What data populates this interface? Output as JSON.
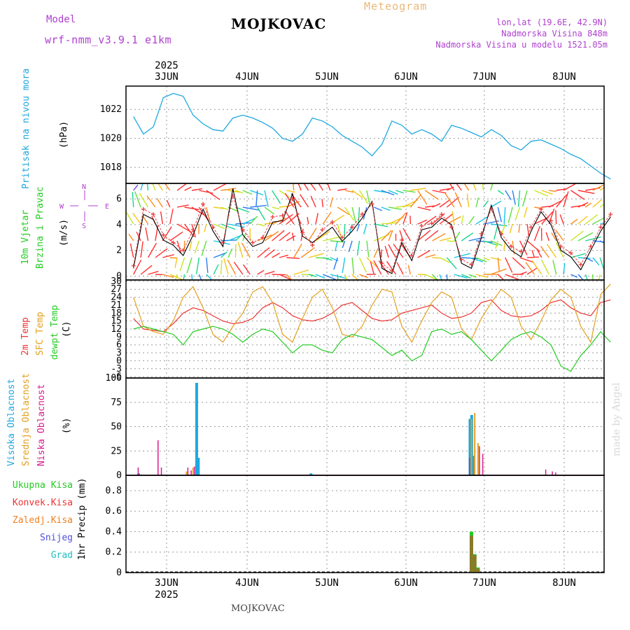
{
  "header": {
    "model_label": "Model",
    "model_name": "wrf-nmm_v3.9.1 e1km",
    "station": "MOJKOVAC",
    "product": "Meteogram",
    "lonlat": "lon,lat (19.6E, 42.9N)",
    "elevation": "Nadmorska Visina 848m",
    "model_elevation": "Nadmorska Visina u modelu 1521.05m"
  },
  "footer": {
    "station": "MOJKOVAC",
    "credit": "made by Angel"
  },
  "colors": {
    "pressure": "#1fa8e0",
    "temp2m": "#ee3333",
    "sfc": "#e3a020",
    "dewpt": "#22cc22",
    "high_cloud": "#1fa8e0",
    "mid_cloud": "#e3a020",
    "low_cloud": "#d81b8c",
    "precip_total": "#22cc22",
    "precip_conv": "#ee3333",
    "precip_frz": "#f08020",
    "snow": "#5050e0",
    "hail": "#20c0c0",
    "purple_text": "#b040d0"
  },
  "axis": {
    "year": "2025",
    "days": [
      "3JUN",
      "4JUN",
      "5JUN",
      "6JUN",
      "7JUN",
      "8JUN"
    ]
  },
  "panels": {
    "pressure": {
      "label1": "Pritisak na nivou mora",
      "unit": "(hPa)",
      "ticks": [
        "1018",
        "1020",
        "1022"
      ]
    },
    "wind": {
      "label1": "10m Vjetar",
      "label2": "Brzina i Pravac",
      "unit": "(m/s)",
      "ticks": [
        "0",
        "2",
        "4",
        "6"
      ],
      "compass": {
        "w": "W",
        "e": "E",
        "n": "N",
        "s": "S"
      }
    },
    "temp": {
      "label1": "2m Temp",
      "label2": "SFC Temp",
      "label3": "dewpt Temp",
      "unit": "(C)",
      "ticks": [
        "-6",
        "-3",
        "0",
        "3",
        "6",
        "9",
        "12",
        "15",
        "18",
        "21",
        "24",
        "27",
        "30"
      ]
    },
    "cloud": {
      "label1": "Visoka Oblacnost",
      "label2": "Srednja Oblacnost",
      "label3": "Niska Oblacnost",
      "unit": "(%)",
      "ticks": [
        "0",
        "25",
        "50",
        "75",
        "100"
      ]
    },
    "precip": {
      "legend": [
        "Ukupna Kisa",
        "Konvek.Kisa",
        "Zaledj.Kisa",
        "Snijeg",
        "Grad"
      ],
      "label": "1hr Precip (mm)",
      "ticks": [
        "0",
        "0.2",
        "0.4",
        "0.6",
        "0.8"
      ]
    }
  },
  "chart_data": [
    {
      "type": "line",
      "title": "Pritisak na nivou mora",
      "ylabel": "(hPa)",
      "ylim": [
        1016.9,
        1023.6
      ],
      "x_hours": [
        0,
        3,
        6,
        9,
        12,
        15,
        18,
        21,
        24,
        27,
        30,
        33,
        36,
        39,
        42,
        45,
        48,
        51,
        54,
        57,
        60,
        63,
        66,
        69,
        72,
        75,
        78,
        81,
        84,
        87,
        90,
        93,
        96,
        99,
        102,
        105,
        108,
        111,
        114,
        117,
        120,
        123,
        126,
        129,
        132,
        135,
        138,
        141,
        144
      ],
      "series": [
        {
          "values": [
            1021.5,
            1020.3,
            1020.8,
            1022.8,
            1023.1,
            1022.9,
            1021.6,
            1021.0,
            1020.6,
            1020.5,
            1021.4,
            1021.6,
            1021.4,
            1021.1,
            1020.7,
            1020.0,
            1019.8,
            1020.3,
            1021.4,
            1021.2,
            1020.8,
            1020.2,
            1019.8,
            1019.4,
            1018.8,
            1019.6,
            1021.2,
            1020.9,
            1020.3,
            1020.6,
            1020.3,
            1019.8,
            1020.9,
            1020.7,
            1020.4,
            1020.1,
            1020.6,
            1020.2,
            1019.5,
            1019.2,
            1019.8,
            1019.9,
            1019.6,
            1019.3,
            1018.9,
            1018.6,
            1018.1,
            1017.6,
            1017.2
          ]
        }
      ],
      "grid": true
    },
    {
      "type": "line",
      "title": "10m Vjetar Brzina i Pravac",
      "ylabel": "(m/s)",
      "ylim": [
        -0.3,
        7.2
      ],
      "x_hours": [
        0,
        3,
        6,
        9,
        12,
        15,
        18,
        21,
        24,
        27,
        30,
        33,
        36,
        39,
        42,
        45,
        48,
        51,
        54,
        57,
        60,
        63,
        66,
        69,
        72,
        75,
        78,
        81,
        84,
        87,
        90,
        93,
        96,
        99,
        102,
        105,
        108,
        111,
        114,
        117,
        120,
        123,
        126,
        129,
        132,
        135,
        138,
        141,
        144
      ],
      "series": [
        {
          "name": "speed",
          "values": [
            0.6,
            4.8,
            4.4,
            2.8,
            2.4,
            1.6,
            3.2,
            5.2,
            3.5,
            2.3,
            6.8,
            3.2,
            2.3,
            2.6,
            4.2,
            4.3,
            6.4,
            3.1,
            2.6,
            3.2,
            3.8,
            2.7,
            3.5,
            4.5,
            5.8,
            0.6,
            0.2,
            2.6,
            1.2,
            3.6,
            3.8,
            4.5,
            4.0,
            1.0,
            0.6,
            3.0,
            5.5,
            3.0,
            2.0,
            1.5,
            3.5,
            5.0,
            4.0,
            2.0,
            1.5,
            0.5,
            2.0,
            3.5,
            4.6
          ]
        },
        {
          "name": "gust",
          "values": [
            0.8,
            5.2,
            4.8,
            3.2,
            2.6,
            2.0,
            3.6,
            5.6,
            3.8,
            2.6,
            6.2,
            3.6,
            2.6,
            3.0,
            4.6,
            4.7,
            6.0,
            3.4,
            2.4,
            3.6,
            4.2,
            3.0,
            3.8,
            4.8,
            5.6,
            1.0,
            0.4,
            2.8,
            1.6,
            3.9,
            4.1,
            4.8,
            3.8,
            1.3,
            0.9,
            3.3,
            5.2,
            3.3,
            2.3,
            1.9,
            3.8,
            5.2,
            4.3,
            2.3,
            1.8,
            0.9,
            2.3,
            3.8,
            4.8
          ]
        }
      ],
      "grid": true
    },
    {
      "type": "line",
      "title": "2m Temp / SFC Temp / dewpt Temp",
      "ylabel": "(C)",
      "ylim": [
        -6.5,
        30.5
      ],
      "x_hours": [
        0,
        3,
        6,
        9,
        12,
        15,
        18,
        21,
        24,
        27,
        30,
        33,
        36,
        39,
        42,
        45,
        48,
        51,
        54,
        57,
        60,
        63,
        66,
        69,
        72,
        75,
        78,
        81,
        84,
        87,
        90,
        93,
        96,
        99,
        102,
        105,
        108,
        111,
        114,
        117,
        120,
        123,
        126,
        129,
        132,
        135,
        138,
        141,
        144
      ],
      "series": [
        {
          "name": "2m Temp",
          "values": [
            16,
            12,
            11.5,
            11,
            14,
            18,
            20,
            19,
            17,
            15,
            14,
            14.5,
            16,
            20,
            22,
            20,
            17,
            15.5,
            15,
            16,
            18,
            21,
            22,
            19,
            16,
            15,
            15.5,
            18,
            19,
            20,
            21,
            18,
            16,
            16.5,
            18,
            22,
            23,
            19,
            17,
            16.5,
            17,
            19,
            22,
            23,
            20,
            18,
            17,
            22,
            23
          ]
        },
        {
          "name": "SFC Temp",
          "values": [
            24,
            13,
            11,
            10,
            15,
            24,
            28,
            20,
            10,
            7,
            13,
            18,
            26,
            28,
            22,
            10,
            7,
            16,
            24,
            27,
            20,
            10,
            9,
            13,
            21,
            27,
            26,
            13,
            7,
            15,
            22,
            26,
            24,
            12,
            8,
            16,
            22,
            27,
            24,
            13,
            8,
            15,
            23,
            27,
            24,
            13,
            7,
            25,
            29
          ]
        },
        {
          "name": "dewpt Temp",
          "values": [
            12,
            13,
            12,
            11,
            10,
            6,
            11,
            12,
            13,
            12,
            10,
            7,
            10,
            12,
            11,
            7,
            3,
            6,
            6,
            4,
            3,
            8,
            10,
            9,
            8,
            5,
            2,
            4,
            0,
            2,
            11,
            12,
            10,
            11,
            8,
            4,
            0,
            4,
            8,
            10,
            11,
            9,
            6,
            -2,
            -4,
            2,
            6,
            11,
            7
          ]
        }
      ],
      "grid": true
    },
    {
      "type": "bar",
      "title": "Oblacnost",
      "ylabel": "(%)",
      "ylim": [
        0,
        100
      ],
      "series": [
        {
          "name": "Visoka Oblacnost",
          "x_hours": [
            2,
            19,
            19.5,
            20,
            54,
            102,
            102.5,
            103
          ],
          "values": [
            2,
            1,
            95,
            18,
            2,
            58,
            62,
            20
          ]
        },
        {
          "name": "Srednja Oblacnost",
          "x_hours": [
            16,
            18,
            102,
            103,
            104
          ],
          "values": [
            4,
            8,
            58,
            64,
            33
          ]
        },
        {
          "name": "Niska Oblacnost",
          "x_hours": [
            1,
            7,
            8,
            16,
            17,
            18,
            101,
            104,
            105,
            124,
            126,
            127
          ],
          "values": [
            8,
            36,
            8,
            8,
            5,
            9,
            18,
            30,
            22,
            6,
            4,
            3
          ]
        }
      ],
      "grid": true
    },
    {
      "type": "bar",
      "title": "1hr Precip",
      "ylabel": "1hr Precip (mm)",
      "ylim": [
        0,
        0.95
      ],
      "series": [
        {
          "name": "Ukupna Kisa",
          "x_hours": [
            102,
            103,
            104
          ],
          "values": [
            0.4,
            0.18,
            0.05
          ]
        },
        {
          "name": "Konvek.Kisa",
          "x_hours": [
            102,
            103,
            104
          ],
          "values": [
            0.36,
            0.17,
            0.04
          ]
        }
      ],
      "grid": true
    }
  ]
}
